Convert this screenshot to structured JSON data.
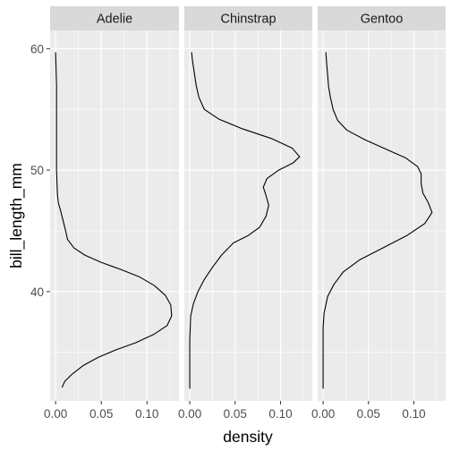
{
  "chart_data": {
    "type": "line",
    "orientation": "density curves plotted vertically, faceted by species",
    "xlabel": "density",
    "ylabel": "bill_length_mm",
    "xlim": [
      -0.006,
      0.135
    ],
    "ylim": [
      31.0,
      61.5
    ],
    "x_ticks": [
      0.0,
      0.05,
      0.1
    ],
    "x_tick_labels": [
      "0.00",
      "0.05",
      "0.10"
    ],
    "y_ticks": [
      40,
      50,
      60
    ],
    "y_tick_labels": [
      "40",
      "50",
      "60"
    ],
    "grid": true,
    "colors": {
      "panel_bg": "#ebebeb",
      "strip_bg": "#d9d9d9",
      "grid": "#ffffff",
      "line": "#000000"
    },
    "facets": [
      {
        "name": "Adelie",
        "points": [
          [
            0.007,
            32.1
          ],
          [
            0.01,
            32.6
          ],
          [
            0.018,
            33.2
          ],
          [
            0.03,
            33.9
          ],
          [
            0.047,
            34.6
          ],
          [
            0.066,
            35.2
          ],
          [
            0.088,
            35.8
          ],
          [
            0.108,
            36.5
          ],
          [
            0.122,
            37.2
          ],
          [
            0.127,
            38.0
          ],
          [
            0.126,
            38.9
          ],
          [
            0.12,
            39.7
          ],
          [
            0.108,
            40.5
          ],
          [
            0.092,
            41.2
          ],
          [
            0.072,
            41.8
          ],
          [
            0.05,
            42.4
          ],
          [
            0.032,
            43.0
          ],
          [
            0.02,
            43.6
          ],
          [
            0.013,
            44.3
          ],
          [
            0.011,
            45.0
          ],
          [
            0.009,
            45.6
          ],
          [
            0.007,
            46.2
          ],
          [
            0.005,
            46.8
          ],
          [
            0.003,
            47.3
          ],
          [
            0.002,
            48.0
          ],
          [
            0.001,
            50.0
          ],
          [
            0.001,
            54.0
          ],
          [
            0.001,
            57.0
          ],
          [
            0.0,
            59.7
          ]
        ]
      },
      {
        "name": "Chinstrap",
        "points": [
          [
            0.0,
            32.0
          ],
          [
            0.0,
            36.0
          ],
          [
            0.001,
            38.0
          ],
          [
            0.004,
            39.0
          ],
          [
            0.009,
            40.0
          ],
          [
            0.016,
            41.0
          ],
          [
            0.025,
            42.0
          ],
          [
            0.035,
            43.0
          ],
          [
            0.048,
            44.0
          ],
          [
            0.064,
            44.6
          ],
          [
            0.077,
            45.3
          ],
          [
            0.084,
            46.2
          ],
          [
            0.087,
            47.1
          ],
          [
            0.084,
            47.9
          ],
          [
            0.081,
            48.6
          ],
          [
            0.085,
            49.3
          ],
          [
            0.098,
            50.0
          ],
          [
            0.114,
            50.6
          ],
          [
            0.121,
            51.1
          ],
          [
            0.113,
            51.8
          ],
          [
            0.09,
            52.6
          ],
          [
            0.058,
            53.4
          ],
          [
            0.032,
            54.2
          ],
          [
            0.016,
            55.0
          ],
          [
            0.01,
            56.0
          ],
          [
            0.007,
            57.0
          ],
          [
            0.005,
            58.0
          ],
          [
            0.003,
            59.0
          ],
          [
            0.002,
            59.7
          ]
        ]
      },
      {
        "name": "Gentoo",
        "points": [
          [
            0.0,
            32.0
          ],
          [
            0.0,
            37.0
          ],
          [
            0.001,
            38.2
          ],
          [
            0.005,
            39.6
          ],
          [
            0.012,
            40.6
          ],
          [
            0.022,
            41.6
          ],
          [
            0.04,
            42.6
          ],
          [
            0.066,
            43.6
          ],
          [
            0.092,
            44.6
          ],
          [
            0.112,
            45.6
          ],
          [
            0.12,
            46.5
          ],
          [
            0.116,
            47.3
          ],
          [
            0.11,
            48.1
          ],
          [
            0.108,
            48.9
          ],
          [
            0.108,
            49.7
          ],
          [
            0.104,
            50.3
          ],
          [
            0.091,
            51.0
          ],
          [
            0.07,
            51.7
          ],
          [
            0.046,
            52.5
          ],
          [
            0.026,
            53.3
          ],
          [
            0.016,
            54.1
          ],
          [
            0.011,
            55.0
          ],
          [
            0.008,
            56.0
          ],
          [
            0.006,
            56.9
          ],
          [
            0.005,
            57.8
          ],
          [
            0.004,
            58.7
          ],
          [
            0.003,
            59.7
          ]
        ]
      }
    ]
  }
}
